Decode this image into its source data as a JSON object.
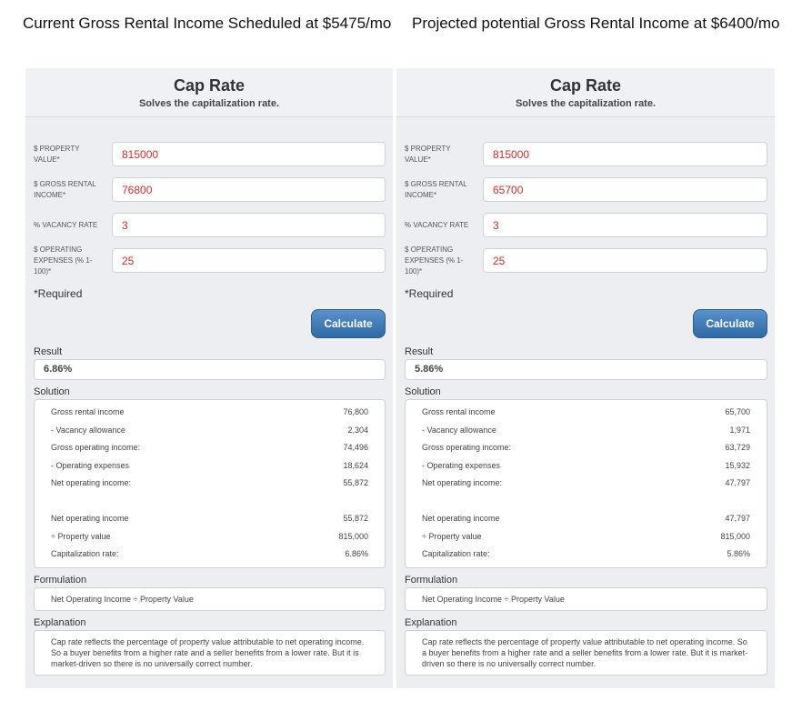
{
  "headings": [
    "Current Gross Rental Income Scheduled at $5475/mo",
    "Projected potential Gross Rental Income at $6400/mo"
  ],
  "panels": [
    {
      "title": "Cap Rate",
      "subtitle": "Solves the capitalization rate.",
      "fields": [
        {
          "label": "$ PROPERTY VALUE*",
          "value": "815000"
        },
        {
          "label": "$ GROSS RENTAL INCOME*",
          "value": "76800"
        },
        {
          "label": "% VACANCY RATE",
          "value": "3"
        },
        {
          "label": "$ OPERATING EXPENSES (% 1-100)*",
          "value": "25"
        }
      ],
      "required": "*Required",
      "button": "Calculate",
      "result_label": "Result",
      "result": "6.86%",
      "solution_label": "Solution",
      "solution": [
        [
          {
            "label": "Gross rental income",
            "value": "76,800"
          },
          {
            "label": "- Vacancy allowance",
            "value": "2,304"
          },
          {
            "label": "Gross operating income:",
            "value": "74,496"
          },
          {
            "label": "- Operating expenses",
            "value": "18,624"
          },
          {
            "label": "Net operating income:",
            "value": "55,872"
          }
        ],
        [
          {
            "label": "Net operating income",
            "value": "55,872"
          },
          {
            "label": "÷ Property value",
            "value": "815,000"
          },
          {
            "label": "Capitalization rate:",
            "value": "6.86%"
          }
        ]
      ],
      "formulation_label": "Formulation",
      "formulation": "Net Operating Income ÷ Property Value",
      "explanation_label": "Explanation",
      "explanation": "Cap rate reflects the percentage of property value attributable to net operating income. So a buyer benefits from a higher rate and a seller benefits from a lower rate. But it is market-driven so there is no universally correct number."
    },
    {
      "title": "Cap Rate",
      "subtitle": "Solves the capitalization rate.",
      "fields": [
        {
          "label": "$ PROPERTY VALUE*",
          "value": "815000"
        },
        {
          "label": "$ GROSS RENTAL INCOME*",
          "value": "65700"
        },
        {
          "label": "% VACANCY RATE",
          "value": "3"
        },
        {
          "label": "$ OPERATING EXPENSES (% 1-100)*",
          "value": "25"
        }
      ],
      "required": "*Required",
      "button": "Calculate",
      "result_label": "Result",
      "result": "5.86%",
      "solution_label": "Solution",
      "solution": [
        [
          {
            "label": "Gross rental income",
            "value": "65,700"
          },
          {
            "label": "- Vacancy allowance",
            "value": "1,971"
          },
          {
            "label": "Gross operating income:",
            "value": "63,729"
          },
          {
            "label": "- Operating expenses",
            "value": "15,932"
          },
          {
            "label": "Net operating income:",
            "value": "47,797"
          }
        ],
        [
          {
            "label": "Net operating income",
            "value": "47,797"
          },
          {
            "label": "÷ Property value",
            "value": "815,000"
          },
          {
            "label": "Capitalization rate:",
            "value": "5.86%"
          }
        ]
      ],
      "formulation_label": "Formulation",
      "formulation": "Net Operating Income ÷ Property Value",
      "explanation_label": "Explanation",
      "explanation": "Cap rate reflects the percentage of property value attributable to net operating income. So a buyer benefits from a higher rate and a seller benefits from a lower rate. But it is market-driven so there is no universally correct number."
    }
  ]
}
